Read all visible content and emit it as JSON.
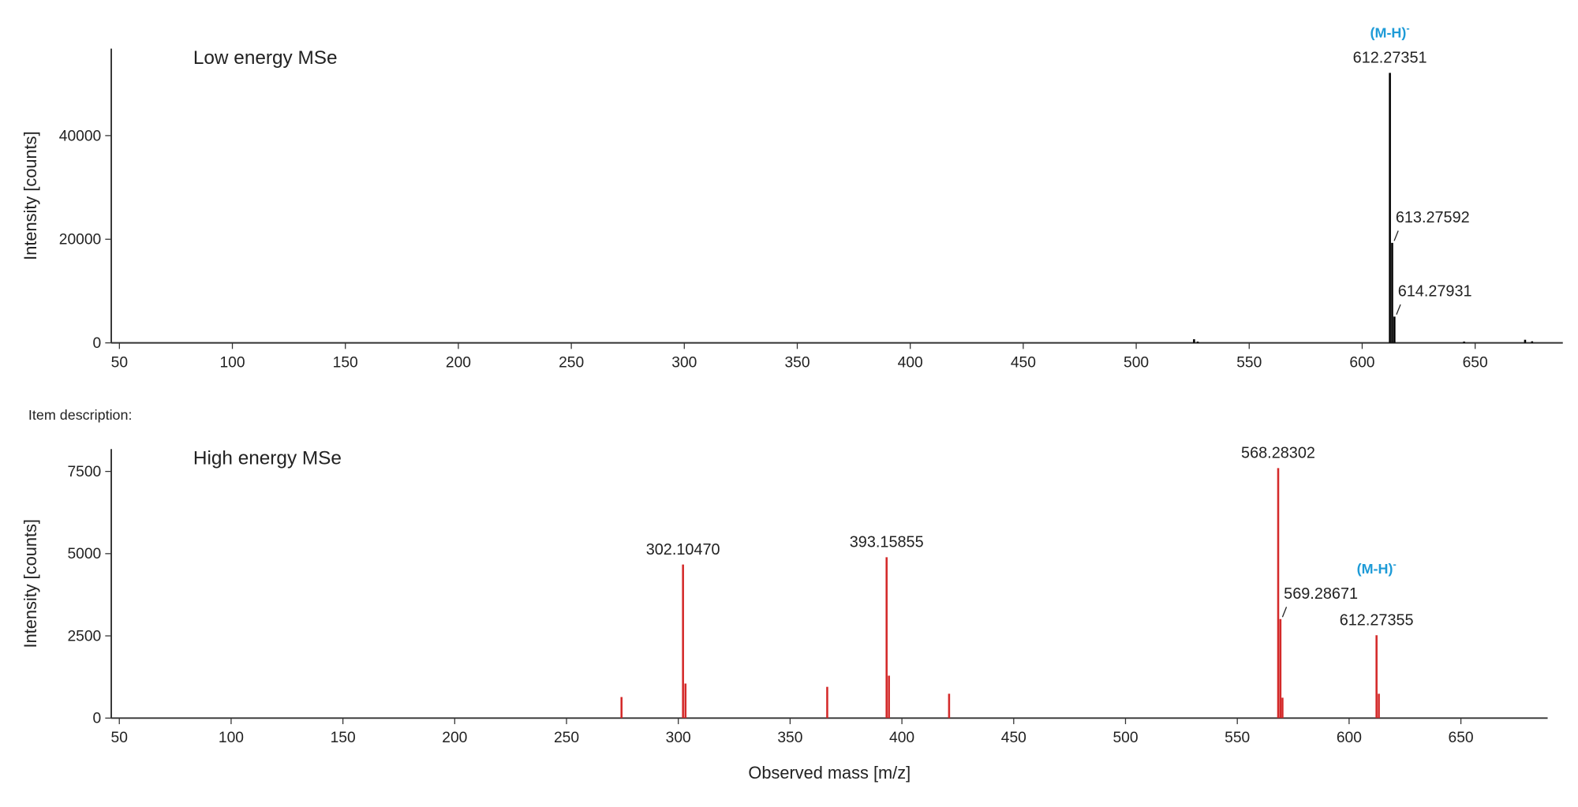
{
  "chart_data": [
    {
      "type": "stem",
      "title": "Low energy MSe",
      "y_label": "Intensity [counts]",
      "color": "#000000",
      "x": [
        525.6,
        527.2,
        612.27351,
        613.27592,
        614.27931,
        645.1,
        672.1,
        675.2
      ],
      "values": [
        700,
        250,
        52100,
        19300,
        5070,
        250,
        600,
        300
      ],
      "xlim": [
        46.4,
        688.8
      ],
      "xticks": [
        50,
        100,
        150,
        200,
        250,
        300,
        350,
        400,
        450,
        500,
        550,
        600,
        650
      ],
      "ylim": [
        0,
        56800
      ],
      "yticks": [
        0,
        20000,
        40000
      ],
      "annotations": [
        {
          "text": "612.27351",
          "x": 612.27351,
          "ion": "(M-H)",
          "charge": "-"
        },
        {
          "text": "613.27592",
          "x": 613.27592
        },
        {
          "text": "614.27931",
          "x": 614.27931
        }
      ]
    },
    {
      "type": "stem",
      "title": "High energy MSe",
      "y_label": "Intensity [counts]",
      "x_label": "Observed mass [m/z]",
      "color": "#d42a2a",
      "section_label": "Item description:",
      "x": [
        274.6,
        302.1047,
        303.2,
        366.6,
        393.15855,
        394.2,
        421.1,
        568.28302,
        569.28671,
        570.2,
        612.27355,
        613.3
      ],
      "values": [
        640,
        4670,
        1050,
        950,
        4890,
        1290,
        740,
        7600,
        3010,
        620,
        2520,
        740
      ],
      "xlim": [
        46.4,
        688.8
      ],
      "xticks": [
        50,
        100,
        150,
        200,
        250,
        300,
        350,
        400,
        450,
        500,
        550,
        600,
        650
      ],
      "ylim": [
        0,
        8180
      ],
      "yticks": [
        0,
        2500,
        5000,
        7500
      ],
      "annotations": [
        {
          "text": "302.10470",
          "x": 302.1047
        },
        {
          "text": "393.15855",
          "x": 393.15855
        },
        {
          "text": "568.28302",
          "x": 568.28302
        },
        {
          "text": "569.28671",
          "x": 569.28671
        },
        {
          "text": "612.27355",
          "x": 612.27355,
          "ion": "(M-H)",
          "charge": "-"
        }
      ]
    }
  ]
}
